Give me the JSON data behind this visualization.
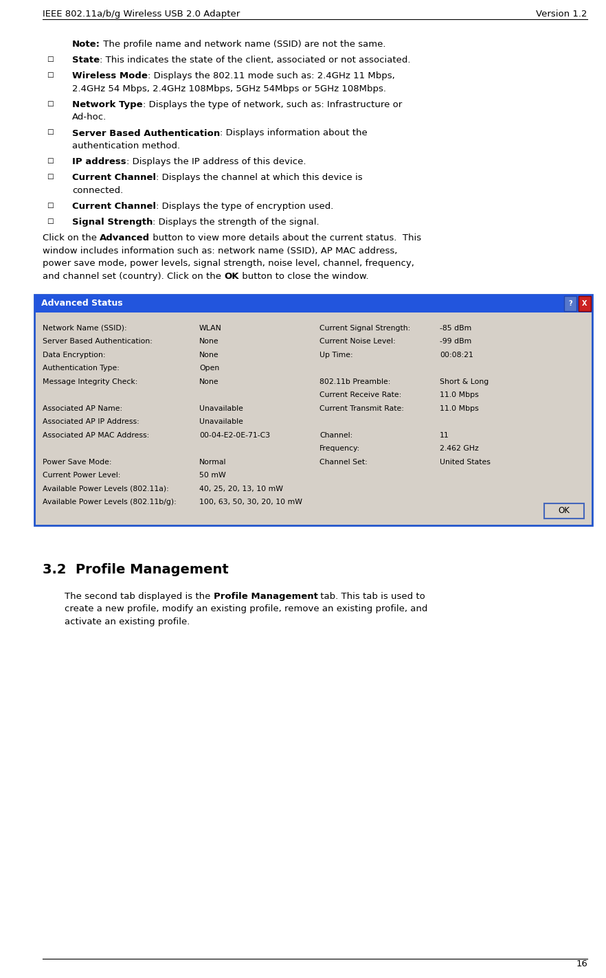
{
  "header_left": "IEEE 802.11a/b/g Wireless USB 2.0 Adapter",
  "header_right": "Version 1.2",
  "page_number": "16",
  "bg_color": "#ffffff",
  "body_font": "DejaVu Sans",
  "dialog_left_col": [
    [
      "Network Name (SSID):",
      "WLAN"
    ],
    [
      "Server Based Authentication:",
      "None"
    ],
    [
      "Data Encryption:",
      "None"
    ],
    [
      "Authentication Type:",
      "Open"
    ],
    [
      "Message Integrity Check:",
      "None"
    ],
    [
      "",
      ""
    ],
    [
      "Associated AP Name:",
      "Unavailable"
    ],
    [
      "Associated AP IP Address:",
      "Unavailable"
    ],
    [
      "Associated AP MAC Address:",
      "00-04-E2-0E-71-C3"
    ],
    [
      "",
      ""
    ],
    [
      "Power Save Mode:",
      "Normal"
    ],
    [
      "Current Power Level:",
      "50 mW"
    ],
    [
      "Available Power Levels (802.11a):",
      "40, 25, 20, 13, 10 mW"
    ],
    [
      "Available Power Levels (802.11b/g):",
      "100, 63, 50, 30, 20, 10 mW"
    ]
  ],
  "dialog_right_col": [
    [
      "Current Signal Strength:",
      "-85 dBm"
    ],
    [
      "Current Noise Level:",
      "-99 dBm"
    ],
    [
      "Up Time:",
      "00:08:21"
    ],
    [
      "",
      ""
    ],
    [
      "802.11b Preamble:",
      "Short & Long"
    ],
    [
      "Current Receive Rate:",
      "11.0 Mbps"
    ],
    [
      "Current Transmit Rate:",
      "11.0 Mbps"
    ],
    [
      "",
      ""
    ],
    [
      "Channel:",
      "11"
    ],
    [
      "Frequency:",
      "2.462 GHz"
    ],
    [
      "Channel Set:",
      "United States"
    ]
  ]
}
